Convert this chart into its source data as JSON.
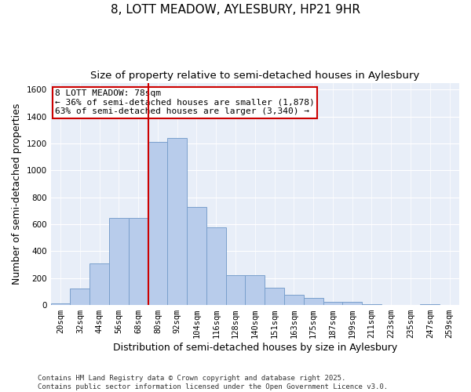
{
  "title_line1": "8, LOTT MEADOW, AYLESBURY, HP21 9HR",
  "title_line2": "Size of property relative to semi-detached houses in Aylesbury",
  "xlabel": "Distribution of semi-detached houses by size in Aylesbury",
  "ylabel": "Number of semi-detached properties",
  "categories": [
    "20sqm",
    "32sqm",
    "44sqm",
    "56sqm",
    "68sqm",
    "80sqm",
    "92sqm",
    "104sqm",
    "116sqm",
    "128sqm",
    "140sqm",
    "151sqm",
    "163sqm",
    "175sqm",
    "187sqm",
    "199sqm",
    "211sqm",
    "223sqm",
    "235sqm",
    "247sqm",
    "259sqm"
  ],
  "values": [
    10,
    125,
    310,
    645,
    645,
    1210,
    1240,
    730,
    575,
    220,
    220,
    130,
    75,
    50,
    25,
    25,
    5,
    0,
    0,
    5,
    0
  ],
  "bar_color": "#b8cceb",
  "bar_edge_color": "#7aa0cc",
  "annotation_title": "8 LOTT MEADOW: 78sqm",
  "annotation_line2": "← 36% of semi-detached houses are smaller (1,878)",
  "annotation_line3": "63% of semi-detached houses are larger (3,340) →",
  "ylim": [
    0,
    1650
  ],
  "yticks": [
    0,
    200,
    400,
    600,
    800,
    1000,
    1200,
    1400,
    1600
  ],
  "footnote_line1": "Contains HM Land Registry data © Crown copyright and database right 2025.",
  "footnote_line2": "Contains public sector information licensed under the Open Government Licence v3.0.",
  "fig_bg_color": "#ffffff",
  "plot_bg_color": "#e8eef8",
  "grid_color": "#ffffff",
  "vline_color": "#cc0000",
  "box_edge_color": "#cc0000",
  "title_fontsize": 11,
  "subtitle_fontsize": 9.5,
  "axis_label_fontsize": 9,
  "tick_fontsize": 7.5,
  "annotation_fontsize": 8,
  "footnote_fontsize": 6.5
}
